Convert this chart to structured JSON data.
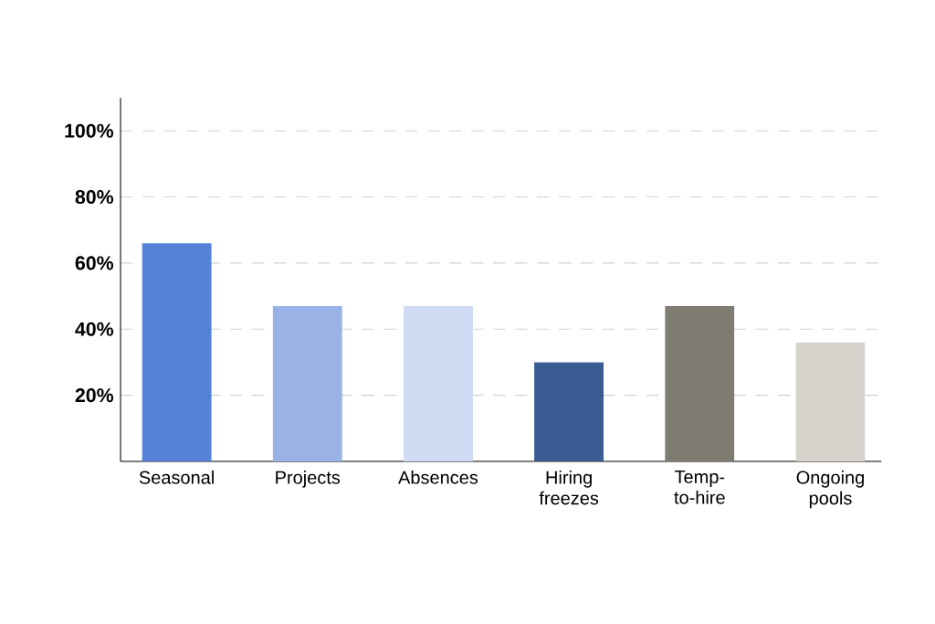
{
  "chart_data": {
    "type": "bar",
    "categories": [
      "Seasonal",
      "Projects",
      "Absences",
      "Hiring freezes",
      "Temp-to-hire",
      "Ongoing pools"
    ],
    "values": [
      66,
      47,
      47,
      30,
      47,
      36
    ],
    "colors": [
      "#5582d6",
      "#9ab3e6",
      "#cfdcf3",
      "#3a5a92",
      "#7f7d72",
      "#d5d1cb"
    ],
    "ylim": [
      0,
      110
    ],
    "yticks": [
      {
        "value": 20,
        "label": "20%"
      },
      {
        "value": 40,
        "label": "40%"
      },
      {
        "value": 60,
        "label": "60%"
      },
      {
        "value": 80,
        "label": "80%"
      },
      {
        "value": 100,
        "label": "100%"
      }
    ],
    "grid": "y"
  }
}
